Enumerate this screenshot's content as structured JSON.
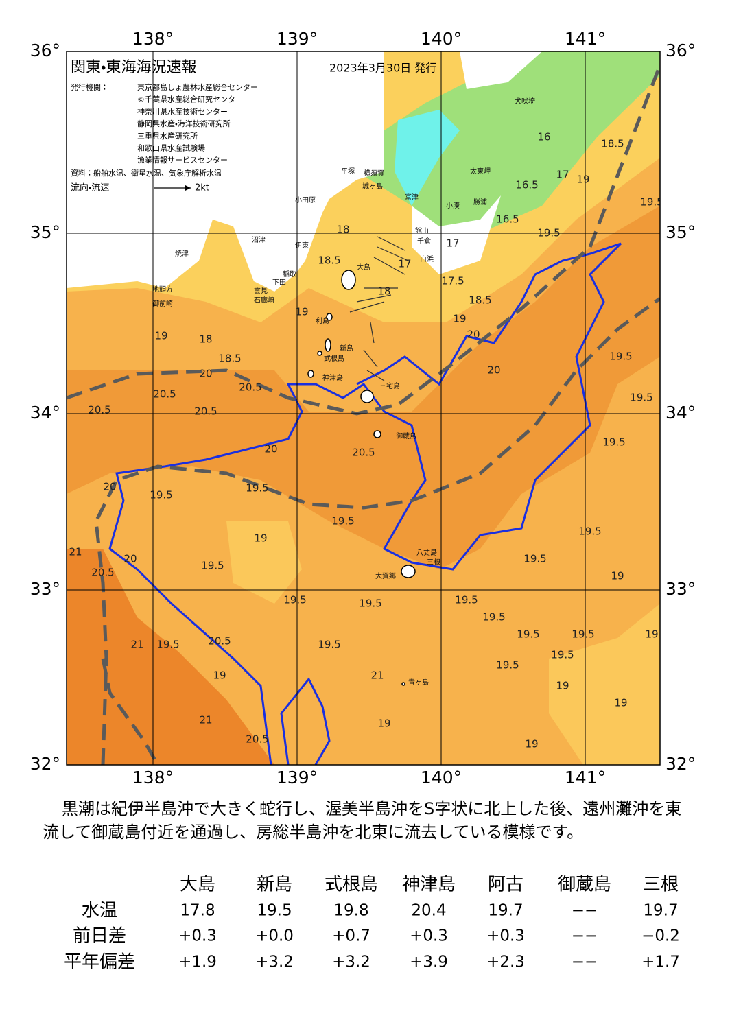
{
  "header": {
    "title": "関東・東海海況速報",
    "date": "2023年3月30日 発行",
    "issuer_label": "発行機関：",
    "issuers": [
      "東京都島しょ農林水産総合センター",
      "©千葉県水産総合研究センター",
      "神奈川県水産技術センター",
      "静岡県水産・海洋技術研究所",
      "三重県水産研究所",
      "和歌山県水産試験場",
      "漁業情報サービスセンター"
    ],
    "source": "資料：船舶水温、衛星水温、気象庁解析水温",
    "legend_label": "流向・流速",
    "legend_scale": "2kt"
  },
  "map": {
    "lon_labels": [
      "138°",
      "139°",
      "140°",
      "141°"
    ],
    "lat_labels": [
      "36°",
      "35°",
      "34°",
      "33°",
      "32°"
    ],
    "contour_labels": [
      "18.5",
      "16",
      "16.5",
      "17",
      "19",
      "19.5",
      "19.5",
      "16.5",
      "17",
      "18",
      "18.5",
      "17",
      "18",
      "17.5",
      "18.5",
      "19",
      "20",
      "19",
      "19",
      "18",
      "18.5",
      "20",
      "20.5",
      "20.5",
      "20.5",
      "20.5",
      "19.5",
      "19.5",
      "20",
      "19.5",
      "20.5",
      "20",
      "20",
      "19.5",
      "19.5",
      "19.5",
      "19",
      "20",
      "19.5",
      "19.5",
      "19.5",
      "19.5",
      "19.5",
      "19.5",
      "19.5",
      "19.5",
      "19.5",
      "20.5",
      "19.5",
      "19.5",
      "19.5",
      "19.5",
      "21",
      "20.5",
      "21",
      "21",
      "21",
      "20.5",
      "19",
      "19",
      "19",
      "19",
      "19",
      "19",
      "19"
    ],
    "place_names": [
      "大島",
      "新島",
      "式根島",
      "神津島",
      "三宅島",
      "御蔵島",
      "八丈島",
      "三根",
      "大賀郷",
      "青ヶ島",
      "利島",
      "小田原",
      "平塚",
      "横須賀",
      "城ヶ島",
      "富津",
      "館山",
      "千倉",
      "白浜",
      "犬吠埼",
      "太東岬",
      "小湊",
      "勝浦",
      "沼津",
      "焼津",
      "伊東",
      "稲取",
      "下田",
      "石廊崎",
      "雲見",
      "御前崎",
      "地頭方"
    ]
  },
  "description": "黒潮は紀伊半島沖で大きく蛇行し、渥美半島沖をS字状に北上した後、遠州灘沖を東流して御蔵島付近を通過し、房総半島沖を北東に流去している模様です。",
  "table": {
    "columns": [
      "大島",
      "新島",
      "式根島",
      "神津島",
      "阿古",
      "御蔵島",
      "三根"
    ],
    "rows": [
      {
        "label": "水温",
        "values": [
          "17.8",
          "19.5",
          "19.8",
          "20.4",
          "19.7",
          "−−",
          "19.7"
        ]
      },
      {
        "label": "前日差",
        "values": [
          "+0.3",
          "+0.0",
          "+0.7",
          "+0.3",
          "+0.3",
          "−−",
          "−0.2"
        ]
      },
      {
        "label": "平年偏差",
        "values": [
          "+1.9",
          "+3.2",
          "+3.2",
          "+3.9",
          "+2.3",
          "−−",
          "+1.7"
        ]
      }
    ]
  }
}
